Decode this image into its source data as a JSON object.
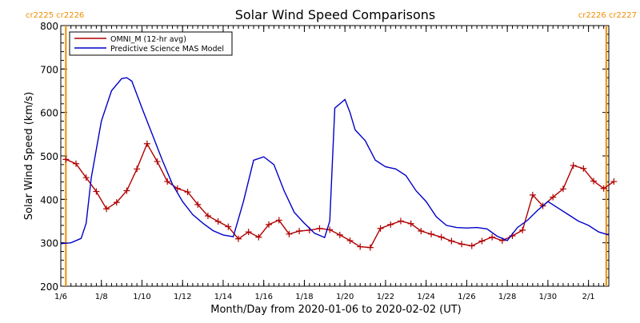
{
  "chart_data": {
    "type": "line",
    "title": "Solar Wind Speed Comparisons",
    "xlabel": "Month/Day from 2020-01-06 to 2020-02-02 (UT)",
    "ylabel": "Solar Wind Speed (km/s)",
    "ylim": [
      200,
      800
    ],
    "yticks": [
      200,
      300,
      400,
      500,
      600,
      700,
      800
    ],
    "xlim": [
      "2020-01-06T00:00",
      "2020-02-02T00:00"
    ],
    "xticks": [
      {
        "label": "1/6",
        "date": "2020-01-06"
      },
      {
        "label": "1/8",
        "date": "2020-01-08"
      },
      {
        "label": "1/10",
        "date": "2020-01-10"
      },
      {
        "label": "1/12",
        "date": "2020-01-12"
      },
      {
        "label": "1/14",
        "date": "2020-01-14"
      },
      {
        "label": "1/16",
        "date": "2020-01-16"
      },
      {
        "label": "1/18",
        "date": "2020-01-18"
      },
      {
        "label": "1/20",
        "date": "2020-01-20"
      },
      {
        "label": "1/22",
        "date": "2020-01-22"
      },
      {
        "label": "1/24",
        "date": "2020-01-24"
      },
      {
        "label": "1/26",
        "date": "2020-01-26"
      },
      {
        "label": "1/28",
        "date": "2020-01-28"
      },
      {
        "label": "1/30",
        "date": "2020-01-30"
      },
      {
        "label": "2/1",
        "date": "2020-02-01"
      }
    ],
    "legend_position": "top-left",
    "rotation_markers": [
      {
        "label": "cr2225 cr2226",
        "date": "2020-01-06T06:00",
        "side": "left"
      },
      {
        "label": "cr2226 cr2227",
        "date": "2020-02-01T21:00",
        "side": "right"
      }
    ],
    "series": [
      {
        "name": "OMNI_M (12-hr avg)",
        "color": "#b00000",
        "marker": "plus",
        "x": [
          "2020-01-06T06:00",
          "2020-01-06T18:00",
          "2020-01-07T06:00",
          "2020-01-07T18:00",
          "2020-01-08T06:00",
          "2020-01-08T18:00",
          "2020-01-09T06:00",
          "2020-01-09T18:00",
          "2020-01-10T06:00",
          "2020-01-10T18:00",
          "2020-01-11T06:00",
          "2020-01-11T18:00",
          "2020-01-12T06:00",
          "2020-01-12T18:00",
          "2020-01-13T06:00",
          "2020-01-13T18:00",
          "2020-01-14T06:00",
          "2020-01-14T18:00",
          "2020-01-15T06:00",
          "2020-01-15T18:00",
          "2020-01-16T06:00",
          "2020-01-16T18:00",
          "2020-01-17T06:00",
          "2020-01-17T18:00",
          "2020-01-18T06:00",
          "2020-01-18T18:00",
          "2020-01-19T06:00",
          "2020-01-19T18:00",
          "2020-01-20T06:00",
          "2020-01-20T18:00",
          "2020-01-21T06:00",
          "2020-01-21T18:00",
          "2020-01-22T06:00",
          "2020-01-22T18:00",
          "2020-01-23T06:00",
          "2020-01-23T18:00",
          "2020-01-24T06:00",
          "2020-01-24T18:00",
          "2020-01-25T06:00",
          "2020-01-25T18:00",
          "2020-01-26T06:00",
          "2020-01-26T18:00",
          "2020-01-27T06:00",
          "2020-01-27T18:00",
          "2020-01-28T06:00",
          "2020-01-28T18:00",
          "2020-01-29T06:00",
          "2020-01-29T18:00",
          "2020-01-30T06:00",
          "2020-01-30T18:00",
          "2020-01-31T06:00",
          "2020-01-31T18:00",
          "2020-02-01T06:00",
          "2020-02-01T18:00",
          "2020-02-02T06:00"
        ],
        "y": [
          492,
          482,
          450,
          418,
          378,
          393,
          420,
          470,
          528,
          487,
          441,
          425,
          417,
          388,
          362,
          349,
          337,
          309,
          325,
          313,
          342,
          352,
          320,
          327,
          329,
          333,
          330,
          318,
          305,
          291,
          289,
          333,
          342,
          350,
          344,
          327,
          320,
          313,
          304,
          297,
          293,
          304,
          313,
          305,
          316,
          329,
          410,
          385,
          405,
          424,
          478,
          471,
          442,
          425,
          441
        ]
      },
      {
        "name": "Predictive Science MAS Model",
        "color": "#0000c8",
        "marker": "none",
        "x": [
          "2020-01-06T00:00",
          "2020-01-06T12:00",
          "2020-01-07T00:00",
          "2020-01-07T06:00",
          "2020-01-07T12:00",
          "2020-01-08T00:00",
          "2020-01-08T12:00",
          "2020-01-09T00:00",
          "2020-01-09T06:00",
          "2020-01-09T12:00",
          "2020-01-10T00:00",
          "2020-01-10T12:00",
          "2020-01-11T00:00",
          "2020-01-11T12:00",
          "2020-01-12T00:00",
          "2020-01-12T12:00",
          "2020-01-13T00:00",
          "2020-01-13T12:00",
          "2020-01-14T00:00",
          "2020-01-14T12:00",
          "2020-01-15T00:00",
          "2020-01-15T12:00",
          "2020-01-16T00:00",
          "2020-01-16T12:00",
          "2020-01-17T00:00",
          "2020-01-17T12:00",
          "2020-01-18T00:00",
          "2020-01-18T12:00",
          "2020-01-19T00:00",
          "2020-01-19T06:00",
          "2020-01-19T12:00",
          "2020-01-20T00:00",
          "2020-01-20T06:00",
          "2020-01-20T12:00",
          "2020-01-21T00:00",
          "2020-01-21T12:00",
          "2020-01-22T00:00",
          "2020-01-22T12:00",
          "2020-01-23T00:00",
          "2020-01-23T12:00",
          "2020-01-24T00:00",
          "2020-01-24T12:00",
          "2020-01-25T00:00",
          "2020-01-25T12:00",
          "2020-01-26T00:00",
          "2020-01-26T12:00",
          "2020-01-27T00:00",
          "2020-01-27T12:00",
          "2020-01-28T00:00",
          "2020-01-28T12:00",
          "2020-01-29T00:00",
          "2020-01-29T12:00",
          "2020-01-30T00:00",
          "2020-01-30T12:00",
          "2020-01-31T00:00",
          "2020-01-31T12:00",
          "2020-02-01T00:00",
          "2020-02-01T12:00",
          "2020-02-02T00:00"
        ],
        "y": [
          298,
          300,
          310,
          345,
          450,
          580,
          650,
          678,
          680,
          672,
          610,
          550,
          490,
          435,
          395,
          365,
          345,
          328,
          318,
          314,
          395,
          490,
          498,
          480,
          420,
          370,
          345,
          322,
          312,
          350,
          610,
          630,
          600,
          560,
          535,
          490,
          475,
          470,
          455,
          420,
          395,
          360,
          340,
          335,
          334,
          335,
          332,
          315,
          305,
          335,
          352,
          375,
          395,
          380,
          365,
          350,
          340,
          325,
          318
        ]
      }
    ]
  }
}
